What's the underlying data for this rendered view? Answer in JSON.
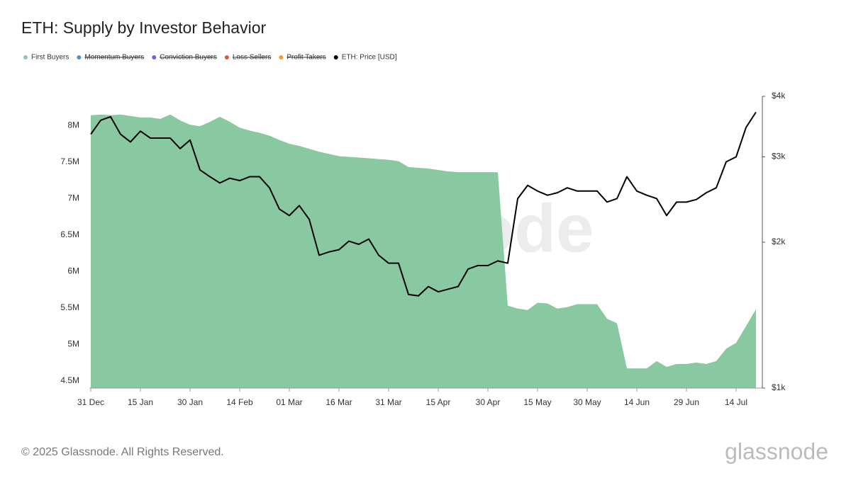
{
  "chart_data": {
    "type": "area-line",
    "title": "ETH: Supply by Investor Behavior",
    "footer": "© 2025 Glassnode. All Rights Reserved.",
    "watermark": "glassnode",
    "categories": [
      "31 Dec",
      null,
      null,
      null,
      null,
      "15 Jan",
      null,
      null,
      null,
      null,
      "30 Jan",
      null,
      null,
      null,
      null,
      "14 Feb",
      null,
      null,
      null,
      null,
      "01 Mar",
      null,
      null,
      null,
      null,
      "16 Mar",
      null,
      null,
      null,
      null,
      "31 Mar",
      null,
      null,
      null,
      null,
      "15 Apr",
      null,
      null,
      null,
      null,
      "30 Apr",
      null,
      null,
      null,
      null,
      "15 May",
      null,
      null,
      null,
      null,
      "30 May",
      null,
      null,
      null,
      null,
      "14 Jun",
      null,
      null,
      null,
      null,
      "29 Jun",
      null,
      null,
      null,
      null,
      "14 Jul",
      null,
      null
    ],
    "series": [
      {
        "name": "First Buyers",
        "color": "#88c9a1",
        "type": "area",
        "axis": "y",
        "values": [
          8140000,
          8150000,
          8140000,
          8150000,
          8130000,
          8110000,
          8110000,
          8090000,
          8150000,
          8070000,
          8010000,
          7990000,
          8050000,
          8120000,
          8050000,
          7970000,
          7930000,
          7900000,
          7860000,
          7800000,
          7750000,
          7720000,
          7680000,
          7640000,
          7610000,
          7580000,
          7570000,
          7560000,
          7550000,
          7540000,
          7530000,
          7510000,
          7430000,
          7420000,
          7410000,
          7390000,
          7370000,
          7360000,
          7360000,
          7360000,
          7360000,
          7360000,
          5530000,
          5490000,
          5470000,
          5570000,
          5560000,
          5490000,
          5510000,
          5550000,
          5550000,
          5550000,
          5350000,
          5290000,
          4670000,
          4670000,
          4670000,
          4770000,
          4690000,
          4730000,
          4730000,
          4750000,
          4730000,
          4770000,
          4940000,
          5020000,
          5250000,
          5480000
        ]
      },
      {
        "name": "ETH: Price [USD]",
        "color": "#000000",
        "type": "line",
        "axis": "y2",
        "values": [
          3340,
          3570,
          3630,
          3340,
          3220,
          3390,
          3280,
          3280,
          3280,
          3120,
          3250,
          2820,
          2730,
          2650,
          2710,
          2680,
          2730,
          2730,
          2590,
          2340,
          2270,
          2380,
          2230,
          1880,
          1910,
          1930,
          2010,
          1980,
          2030,
          1880,
          1810,
          1810,
          1560,
          1550,
          1620,
          1580,
          1600,
          1620,
          1760,
          1790,
          1790,
          1830,
          1810,
          2460,
          2620,
          2550,
          2500,
          2530,
          2590,
          2550,
          2550,
          2550,
          2420,
          2460,
          2730,
          2550,
          2500,
          2460,
          2270,
          2420,
          2420,
          2450,
          2530,
          2590,
          2930,
          3000,
          3450,
          3710
        ]
      }
    ],
    "hidden_series": [
      {
        "name": "Momentum Buyers",
        "color": "#4a90d9"
      },
      {
        "name": "Conviction Buyers",
        "color": "#6b63e0"
      },
      {
        "name": "Loss Sellers",
        "color": "#e0553b"
      },
      {
        "name": "Profit Takers",
        "color": "#f0a030"
      }
    ],
    "ylim": [
      4400000,
      8400000
    ],
    "yticks": [
      {
        "value": 4500000,
        "label": "4.5M"
      },
      {
        "value": 5000000,
        "label": "5M"
      },
      {
        "value": 5500000,
        "label": "5.5M"
      },
      {
        "value": 6000000,
        "label": "6M"
      },
      {
        "value": 6500000,
        "label": "6.5M"
      },
      {
        "value": 7000000,
        "label": "7M"
      },
      {
        "value": 7500000,
        "label": "7.5M"
      },
      {
        "value": 8000000,
        "label": "8M"
      }
    ],
    "y2lim": [
      1000,
      4000
    ],
    "y2ticks": [
      {
        "value": 1000,
        "label": "$1k"
      },
      {
        "value": 2000,
        "label": "$2k"
      },
      {
        "value": 3000,
        "label": "$3k"
      },
      {
        "value": 4000,
        "label": "$4k"
      }
    ],
    "y2scale": "log",
    "grid": false
  }
}
